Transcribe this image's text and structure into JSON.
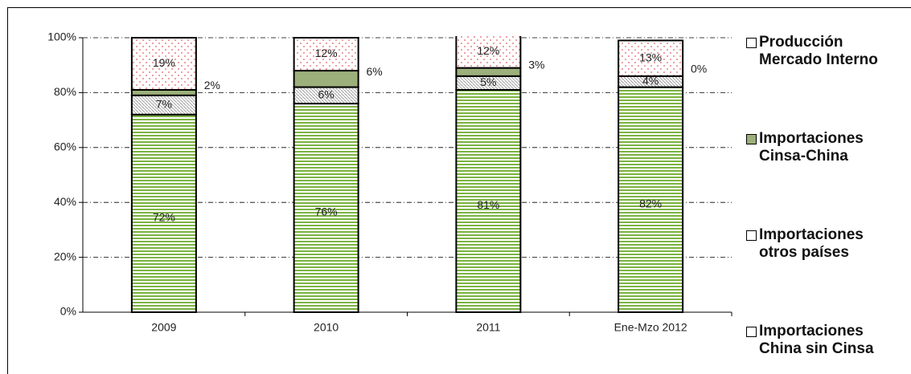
{
  "chart_data": {
    "type": "bar",
    "stacked": true,
    "categories": [
      "2009",
      "2010",
      "2011",
      "Ene-Mzo 2012"
    ],
    "series": [
      {
        "name": "Importaciones China sin Cinsa",
        "color": "#7cb342",
        "values": [
          72,
          76,
          81,
          82
        ],
        "value_labels": [
          "72%",
          "76%",
          "81%",
          "82%"
        ]
      },
      {
        "name": "Importaciones otros países",
        "color": "#a0a0a0",
        "values": [
          7,
          6,
          5,
          4
        ],
        "value_labels": [
          "7%",
          "6%",
          "5%",
          "4%"
        ]
      },
      {
        "name": "Importaciones Cinsa-China",
        "color": "#9bb07a",
        "values": [
          2,
          6,
          3,
          0
        ],
        "value_labels": [
          "2%",
          "6%",
          "3%",
          "0%"
        ]
      },
      {
        "name": "Producción Mercado Interno",
        "color": "#e06060",
        "values": [
          19,
          12,
          12,
          13
        ],
        "value_labels": [
          "19%",
          "12%",
          "12%",
          "13%"
        ]
      }
    ],
    "ylim": [
      0,
      100
    ],
    "yticks": [
      {
        "value": 0,
        "label": "0%"
      },
      {
        "value": 20,
        "label": "20%"
      },
      {
        "value": 40,
        "label": "40%"
      },
      {
        "value": 60,
        "label": "60%"
      },
      {
        "value": 80,
        "label": "80%"
      },
      {
        "value": 100,
        "label": "100%"
      }
    ],
    "grid": true,
    "legend": "right"
  }
}
